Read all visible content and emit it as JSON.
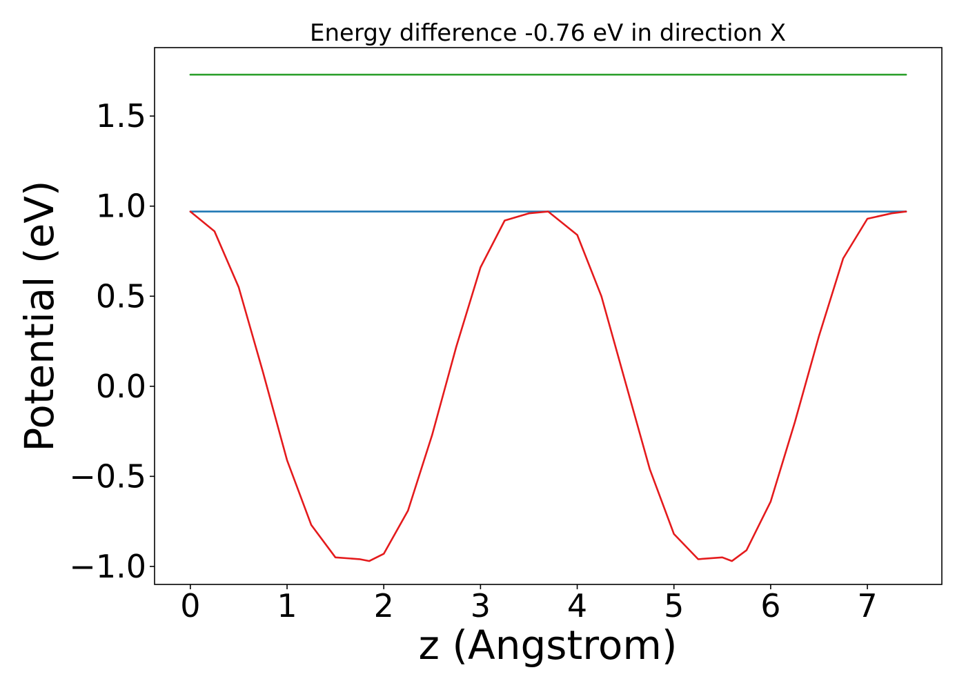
{
  "chart_data": {
    "type": "line",
    "title": "Energy difference -0.76 eV in direction X",
    "xlabel": "z (Angstrom)",
    "ylabel": "Potential (eV)",
    "xlim": [
      -0.37,
      7.77
    ],
    "ylim": [
      -1.1,
      1.88
    ],
    "xticks": [
      0,
      1,
      2,
      3,
      4,
      5,
      6,
      7
    ],
    "xtick_labels": [
      "0",
      "1",
      "2",
      "3",
      "4",
      "5",
      "6",
      "7"
    ],
    "yticks": [
      -1.0,
      -0.5,
      0.0,
      0.5,
      1.0,
      1.5
    ],
    "ytick_labels": [
      "−1.0",
      "−0.5",
      "0.0",
      "0.5",
      "1.0",
      "1.5"
    ],
    "grid": false,
    "legend": "none",
    "series": [
      {
        "color": "#2ca02c",
        "x": [
          0,
          7.4
        ],
        "y": [
          1.73,
          1.73
        ]
      },
      {
        "color": "#1f77b4",
        "x": [
          0,
          7.4
        ],
        "y": [
          0.97,
          0.97
        ]
      },
      {
        "color": "#e41a1c",
        "x": [
          0,
          0.25,
          0.5,
          0.75,
          1.0,
          1.25,
          1.5,
          1.75,
          1.85,
          2.0,
          2.25,
          2.5,
          2.75,
          3.0,
          3.25,
          3.5,
          3.7,
          4.0,
          4.25,
          4.5,
          4.75,
          5.0,
          5.25,
          5.5,
          5.6,
          5.75,
          6.0,
          6.25,
          6.5,
          6.75,
          7.0,
          7.25,
          7.4
        ],
        "y": [
          0.97,
          0.86,
          0.55,
          0.08,
          -0.41,
          -0.77,
          -0.95,
          -0.96,
          -0.97,
          -0.93,
          -0.69,
          -0.27,
          0.22,
          0.66,
          0.92,
          0.96,
          0.97,
          0.84,
          0.5,
          0.02,
          -0.46,
          -0.82,
          -0.96,
          -0.95,
          -0.97,
          -0.91,
          -0.64,
          -0.2,
          0.28,
          0.71,
          0.93,
          0.96,
          0.97
        ]
      }
    ]
  }
}
